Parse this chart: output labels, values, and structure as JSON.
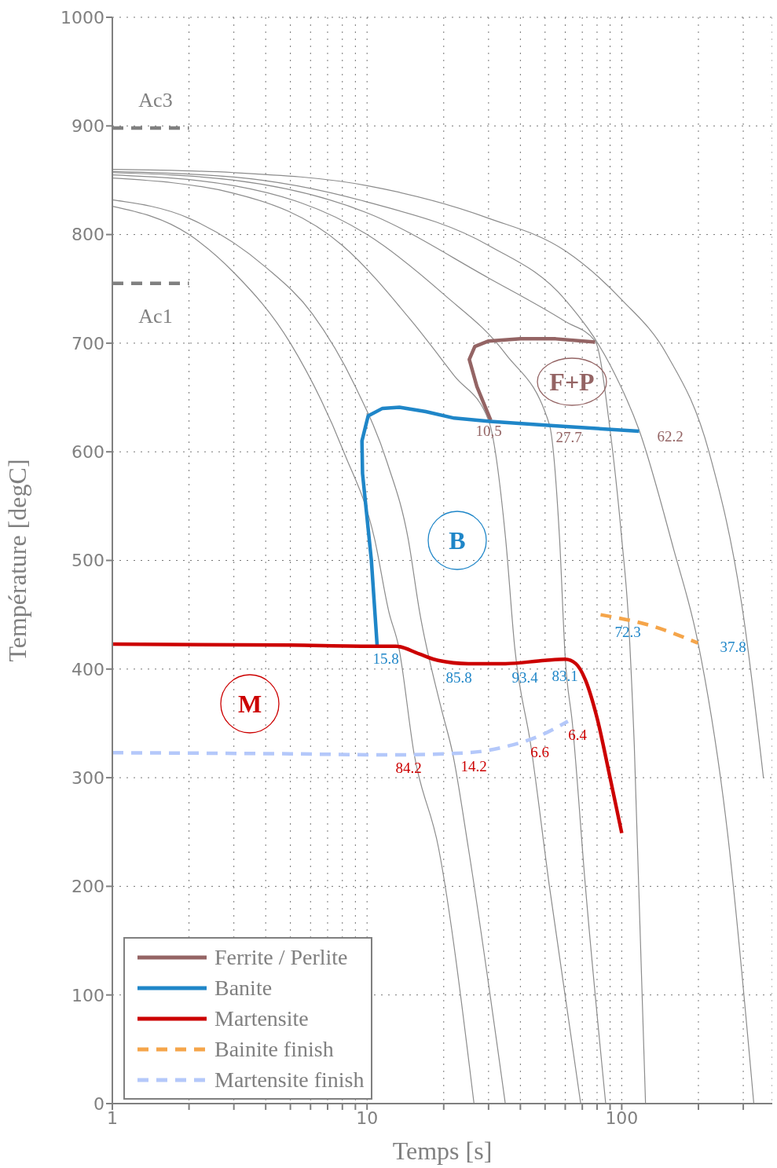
{
  "chart_data": {
    "type": "line",
    "xlabel": "Temps [s]",
    "ylabel": "Température [degC]",
    "log": "x",
    "xlim": [
      1,
      390
    ],
    "xticks": [
      1,
      {
        "value": 2,
        "label": null
      },
      {
        "value": 3,
        "label": null
      },
      {
        "value": 4,
        "label": null
      },
      {
        "value": 5,
        "label": null
      },
      {
        "value": 6,
        "label": null
      },
      {
        "value": 7,
        "label": null
      },
      {
        "value": 8,
        "label": null
      },
      {
        "value": 9,
        "label": null
      },
      10,
      {
        "value": 20,
        "label": null
      },
      {
        "value": 30,
        "label": null
      },
      {
        "value": 40,
        "label": null
      },
      {
        "value": 50,
        "label": null
      },
      {
        "value": 60,
        "label": null
      },
      {
        "value": 70,
        "label": null
      },
      {
        "value": 80,
        "label": null
      },
      {
        "value": 90,
        "label": null
      },
      100,
      {
        "value": 200,
        "label": null
      },
      {
        "value": 300,
        "label": null
      }
    ],
    "ylim": [
      0,
      1000
    ],
    "yticks": [
      0,
      100,
      200,
      300,
      400,
      500,
      600,
      700,
      800,
      900,
      1000
    ],
    "grid": true,
    "legend": "bottom left",
    "marker": "none",
    "series": [
      {
        "color": "#8c8c8c",
        "x": [
          1,
          2,
          3,
          5,
          8.1,
          10.7,
          12.2,
          13.3,
          15.3,
          19.1,
          26.3
        ],
        "values": [
          826,
          800,
          765,
          700,
          600,
          520,
          452,
          421,
          322,
          235,
          0
        ]
      },
      {
        "color": "#8c8c8c",
        "x": [
          1,
          2,
          4,
          6.1,
          9,
          12,
          14.5,
          16.1,
          19.5,
          21.7,
          25,
          34.9
        ],
        "values": [
          832,
          815,
          770,
          727,
          660,
          590,
          520,
          452,
          365,
          322,
          235,
          0
        ]
      },
      {
        "color": "#8c8c8c",
        "x": [
          1,
          3,
          8,
          15,
          22,
          30,
          35,
          38,
          44,
          52,
          69
        ],
        "values": [
          852,
          838,
          790,
          720,
          670,
          629,
          520,
          420,
          329,
          200,
          0
        ]
      },
      {
        "color": "#8c8c8c",
        "x": [
          1,
          3,
          10,
          20,
          35,
          52,
          57,
          60,
          64,
          72,
          86.5
        ],
        "values": [
          855,
          845,
          800,
          745,
          690,
          625,
          520,
          410,
          350,
          200,
          0
        ]
      },
      {
        "color": "#8c8c8c",
        "x": [
          1,
          3,
          10,
          30,
          60,
          78.6,
          90,
          100,
          106,
          112,
          124
        ],
        "values": [
          857,
          850,
          820,
          760,
          720,
          702,
          620,
          520,
          450,
          330,
          0
        ]
      },
      {
        "color": "#8c8c8c",
        "x": [
          1,
          3,
          10,
          30,
          60,
          90,
          117,
          160,
          199,
          260,
          330
        ],
        "values": [
          858,
          853,
          830,
          790,
          740,
          680,
          620,
          510,
          425,
          250,
          0
        ]
      },
      {
        "color": "#8c8c8c",
        "x": [
          1,
          3,
          10,
          30,
          60,
          100,
          150,
          220,
          300,
          360
        ],
        "values": [
          860,
          857,
          845,
          815,
          785,
          740,
          690,
          600,
          450,
          300
        ]
      },
      {
        "color": "#808080",
        "line_style": "dashed",
        "x": [
          1,
          2
        ],
        "values": [
          898,
          898
        ]
      },
      {
        "color": "#808080",
        "line_style": "dashed",
        "x": [
          1,
          2
        ],
        "values": [
          755,
          755
        ]
      },
      {
        "name": "Ferrite / Perlite",
        "color": "#946464",
        "x": [
          30.6,
          27,
          25.2,
          26.5,
          30,
          40,
          55,
          78.6
        ],
        "values": [
          629,
          660,
          685,
          697,
          702,
          704,
          704,
          701
        ]
      },
      {
        "name": "Banite",
        "color": "#1f86c8",
        "x": [
          10.96,
          10.4,
          9.6,
          9.55,
          10.1,
          11.5,
          13.4,
          17,
          22,
          30.4,
          54,
          117
        ],
        "values": [
          421,
          500,
          580,
          610,
          633,
          640,
          641,
          637,
          631,
          628,
          624,
          619
        ]
      },
      {
        "name": "Martensite",
        "color": "#cc0000",
        "x": [
          1,
          5,
          10.96,
          13,
          16,
          19,
          25,
          35,
          50,
          60,
          66,
          72,
          80,
          90,
          100
        ],
        "values": [
          423,
          422,
          421,
          421,
          414,
          408,
          405,
          405,
          408,
          409,
          405,
          390,
          355,
          300,
          249
        ]
      },
      {
        "name": "Bainite finish",
        "color": "#f5a54a",
        "line_style": "dashed",
        "x": [
          82.6,
          130,
          199
        ],
        "values": [
          450,
          440,
          424
        ]
      },
      {
        "name": "Martensite finish",
        "color": "#b4c8fa",
        "line_style": "dashed",
        "x": [
          1,
          5,
          12.4,
          25,
          35.6,
          47,
          61.5
        ],
        "values": [
          323,
          322,
          321,
          323,
          329,
          338,
          352
        ]
      }
    ],
    "annotations": [
      "Ac3",
      "Ac1",
      "10,5",
      "27.7",
      "62.2",
      "15.8",
      "85.8",
      "93.4",
      "83.1",
      "72.3",
      "37.8",
      "84.2",
      "14.2",
      "6.6",
      "6.4",
      "F+P",
      "B",
      "M"
    ]
  }
}
